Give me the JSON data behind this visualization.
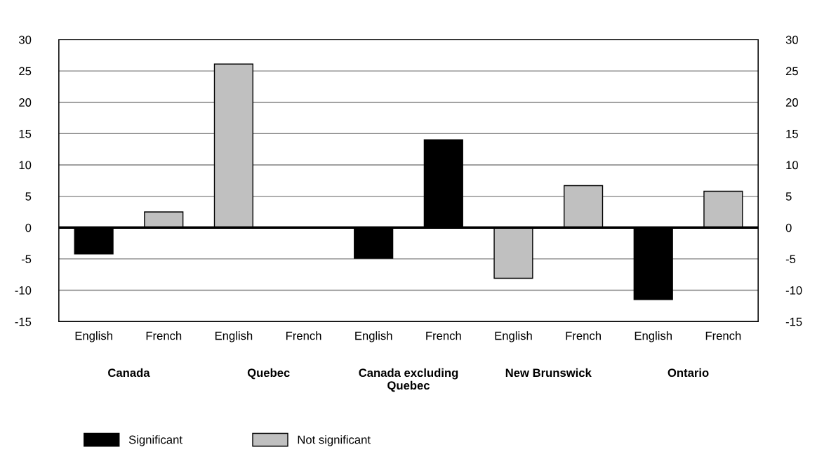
{
  "chart_data": {
    "type": "bar",
    "categories": [
      "English",
      "French",
      "English",
      "French",
      "English",
      "French",
      "English",
      "French",
      "English",
      "French"
    ],
    "series": [
      {
        "name": "Significant",
        "color": "#000000",
        "values": [
          -4.2,
          null,
          null,
          null,
          -4.9,
          14.0,
          null,
          null,
          -11.5,
          null
        ]
      },
      {
        "name": "Not significant",
        "color": "#c0c0c0",
        "values": [
          null,
          2.5,
          26.1,
          null,
          null,
          null,
          -8.1,
          6.7,
          null,
          5.8
        ]
      }
    ],
    "annotations": [
      "Canada",
      "Quebec",
      "Canada excluding\nQuebec",
      "New Brunswick",
      "Ontario"
    ],
    "ylim": [
      -15,
      30
    ],
    "yticks": [
      -15,
      -10,
      -5,
      0,
      5,
      10,
      15,
      20,
      25,
      30
    ],
    "y2lim": [
      -15,
      30
    ],
    "y2ticks": [
      -15,
      -10,
      -5,
      0,
      5,
      10,
      15,
      20,
      25,
      30
    ],
    "grid": "y",
    "legend": "bottom left"
  }
}
